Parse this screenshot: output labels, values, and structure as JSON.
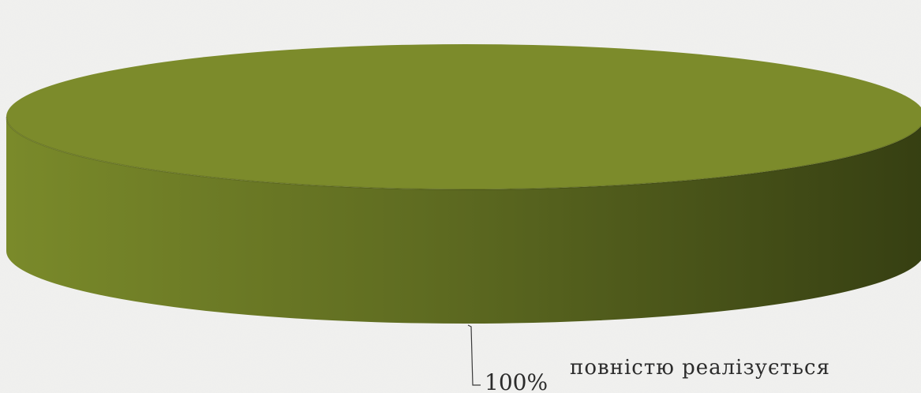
{
  "chart_data": {
    "type": "pie",
    "style": "3d",
    "title": "",
    "slices": [
      {
        "label": "повністю реалізується",
        "value": 100,
        "percent_label": "100%",
        "color": "#7c8b2b"
      }
    ],
    "legend": "none"
  },
  "colors": {
    "background": "#f1f1ef",
    "slice_top": "#7c8b2b",
    "slice_side_light": "#7a8a2a",
    "slice_side_dark": "#363f12",
    "leader_line": "#3a3a3a"
  }
}
